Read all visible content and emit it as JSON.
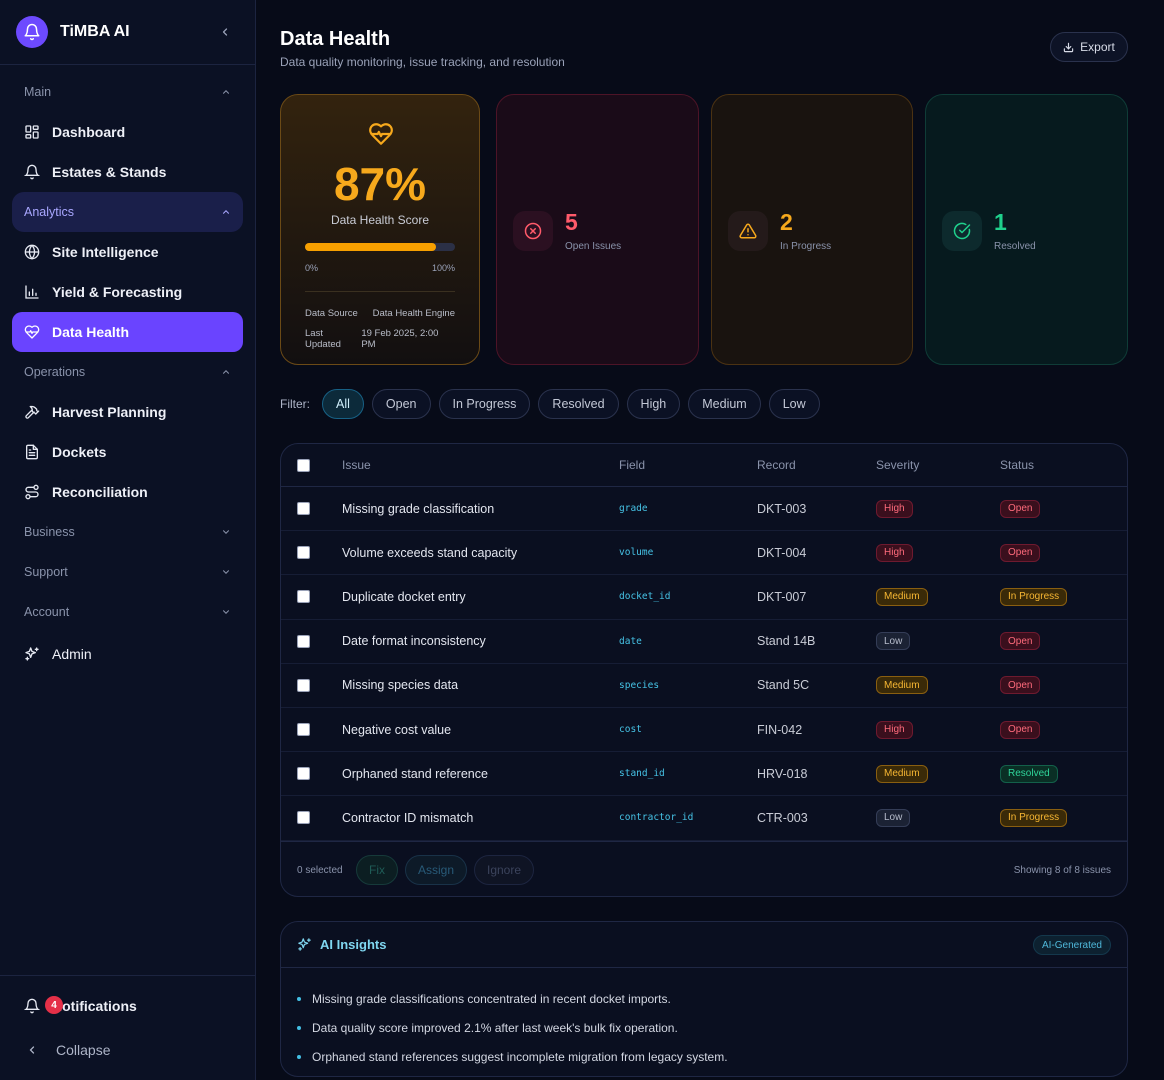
{
  "app": {
    "name": "TiMBA AI"
  },
  "sidebar": {
    "sections": {
      "main": "Main",
      "analytics": "Analytics",
      "operations": "Operations",
      "business": "Business",
      "support": "Support",
      "account": "Account"
    },
    "items": {
      "dashboard": "Dashboard",
      "estates": "Estates & Stands",
      "site_intel": "Site Intelligence",
      "yield": "Yield & Forecasting",
      "data_health": "Data Health",
      "harvest": "Harvest Planning",
      "dockets": "Dockets",
      "reconciliation": "Reconciliation",
      "admin": "Admin"
    },
    "notifications": {
      "label": "Notifications",
      "count": "4"
    },
    "collapse_label": "Collapse"
  },
  "header": {
    "title": "Data Health",
    "subtitle": "Data quality monitoring, issue tracking, and resolution",
    "export_label": "Export"
  },
  "health": {
    "score": "87%",
    "score_value": 87,
    "label": "Data Health Score",
    "min_label": "0%",
    "max_label": "100%",
    "source_label": "Data Source",
    "source_value": "Data Health Engine",
    "updated_label": "Last Updated",
    "updated_value": "19 Feb 2025, 2:00 PM"
  },
  "stats": {
    "open": {
      "value": "5",
      "label": "Open Issues"
    },
    "in_progress": {
      "value": "2",
      "label": "In Progress"
    },
    "resolved": {
      "value": "1",
      "label": "Resolved"
    }
  },
  "filters": {
    "label": "Filter:",
    "options": [
      "All",
      "Open",
      "In Progress",
      "Resolved",
      "High",
      "Medium",
      "Low"
    ],
    "active": "All"
  },
  "table": {
    "columns": {
      "issue": "Issue",
      "field": "Field",
      "record": "Record",
      "severity": "Severity",
      "status": "Status"
    },
    "rows": [
      {
        "issue": "Missing grade classification",
        "field": "grade",
        "record": "DKT-003",
        "severity": "High",
        "status": "Open"
      },
      {
        "issue": "Volume exceeds stand capacity",
        "field": "volume",
        "record": "DKT-004",
        "severity": "High",
        "status": "Open"
      },
      {
        "issue": "Duplicate docket entry",
        "field": "docket_id",
        "record": "DKT-007",
        "severity": "Medium",
        "status": "In Progress"
      },
      {
        "issue": "Date format inconsistency",
        "field": "date",
        "record": "Stand 14B",
        "severity": "Low",
        "status": "Open"
      },
      {
        "issue": "Missing species data",
        "field": "species",
        "record": "Stand 5C",
        "severity": "Medium",
        "status": "Open"
      },
      {
        "issue": "Negative cost value",
        "field": "cost",
        "record": "FIN-042",
        "severity": "High",
        "status": "Open"
      },
      {
        "issue": "Orphaned stand reference",
        "field": "stand_id",
        "record": "HRV-018",
        "severity": "Medium",
        "status": "Resolved"
      },
      {
        "issue": "Contractor ID mismatch",
        "field": "contractor_id",
        "record": "CTR-003",
        "severity": "Low",
        "status": "In Progress"
      }
    ],
    "footer": {
      "selected": "0 selected",
      "fix_label": "Fix",
      "assign_label": "Assign",
      "ignore_label": "Ignore",
      "showing": "Showing 8 of 8 issues"
    }
  },
  "ai": {
    "title": "AI Insights",
    "badge": "AI-Generated",
    "insights": [
      "Missing grade classifications concentrated in recent docket imports.",
      "Data quality score improved 2.1% after last week's bulk fix operation.",
      "Orphaned stand references suggest incomplete migration from legacy system."
    ]
  },
  "colors": {
    "accent": "#6a44ff",
    "health": "#f7a91c",
    "open": "#ff5a6a",
    "resolved": "#1fd08c",
    "field": "#46c3e6"
  }
}
